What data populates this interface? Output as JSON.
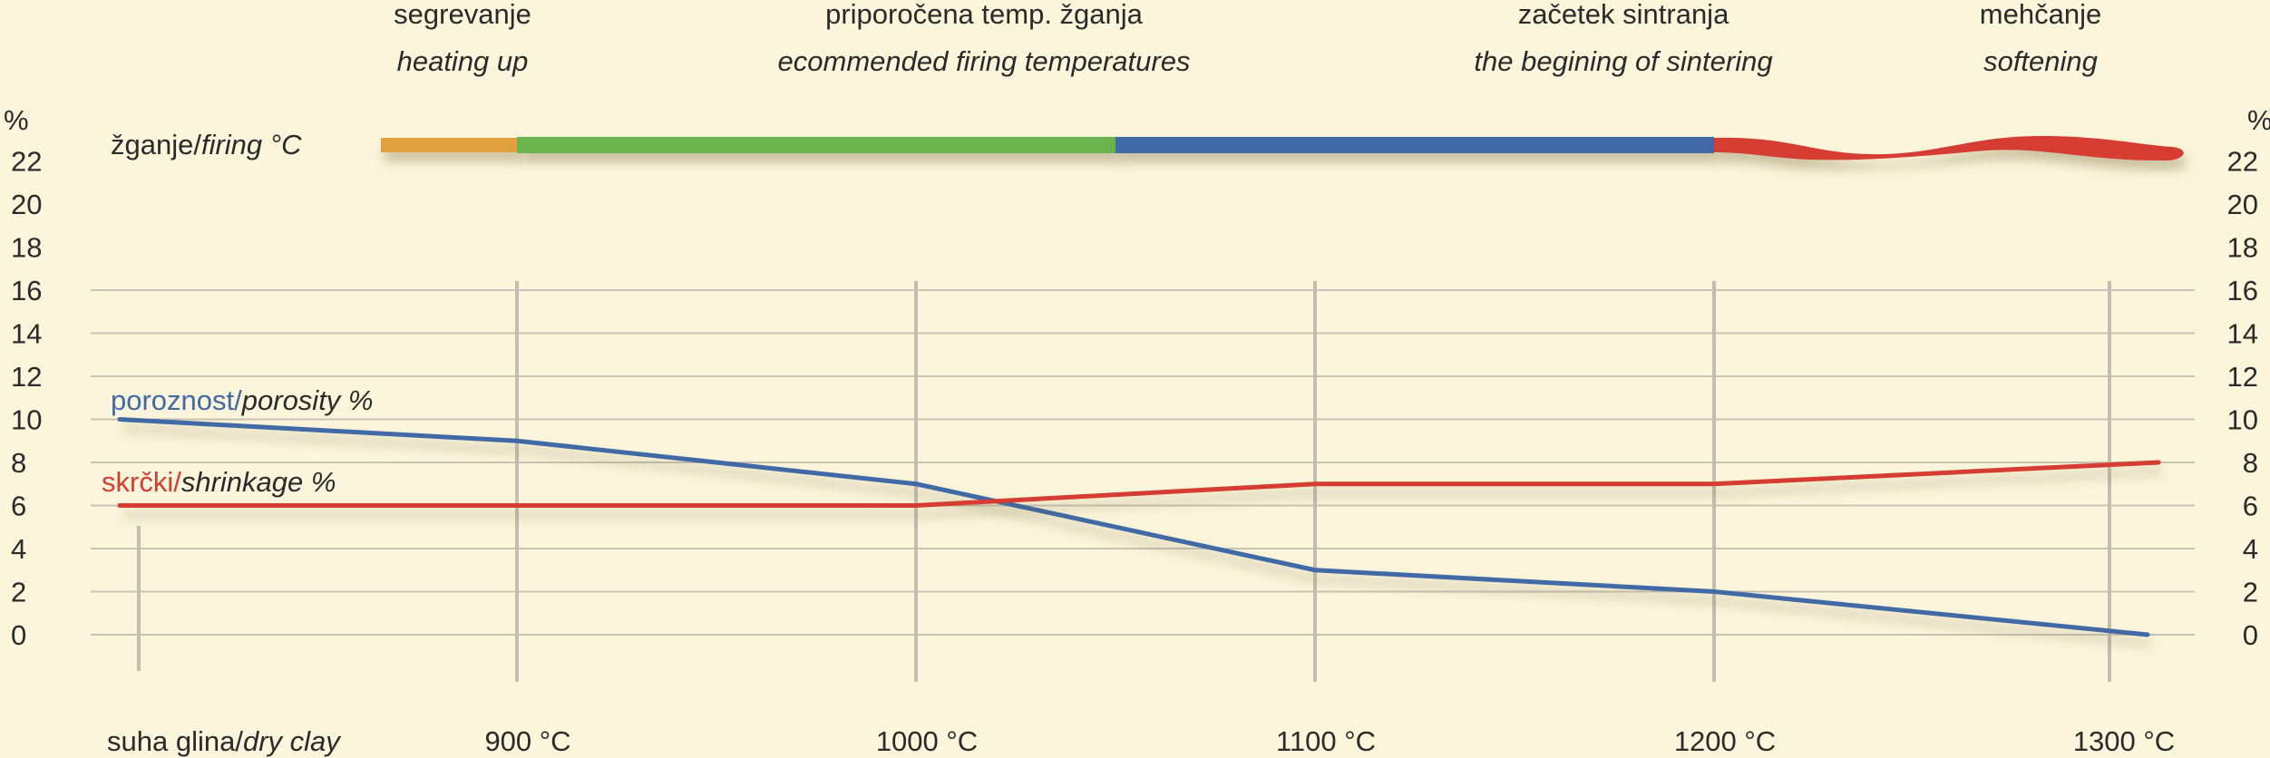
{
  "chart_data": {
    "type": "line",
    "phases": [
      {
        "label": "segrevanje",
        "label_en": "heating up",
        "color": "#e3a23f",
        "x_from": 850,
        "x_to": 900
      },
      {
        "label": "priporočena temp. žganja",
        "label_en": "ecommended firing temperatures",
        "color": "#6cb44e",
        "x_from": 900,
        "x_to": 1050
      },
      {
        "label": "začetek sintranja",
        "label_en": "the begining of sintering",
        "color": "#4169a6",
        "x_from": 1050,
        "x_to": 1200
      },
      {
        "label": "mehčanje",
        "label_en": "softening",
        "color": "#d63d31",
        "x_from": 1200,
        "x_to": 1310
      }
    ],
    "firing_label": "žganje/",
    "firing_label_en": "firing °C",
    "y_unit": "%",
    "y_ticks": [
      0,
      2,
      4,
      6,
      8,
      10,
      12,
      14,
      16,
      18,
      20,
      22
    ],
    "ylim": [
      0,
      23
    ],
    "x_ticks": [
      {
        "value": 800,
        "label": "suha glina/",
        "label_en": "dry clay"
      },
      {
        "value": 900,
        "label": "900 °C"
      },
      {
        "value": 1000,
        "label": "1000 °C"
      },
      {
        "value": 1100,
        "label": "1100 °C"
      },
      {
        "value": 1200,
        "label": "1200 °C"
      },
      {
        "value": 1300,
        "label": "1300 °C"
      }
    ],
    "series": [
      {
        "name": "poroznost/",
        "name_en": "porosity %",
        "color": "#4169a6",
        "x": [
          800,
          900,
          1000,
          1100,
          1200,
          1300
        ],
        "values": [
          10,
          9,
          7,
          3,
          2,
          0
        ]
      },
      {
        "name": "skrčki/",
        "name_en": "shrinkage %",
        "color": "#d63d31",
        "x": [
          800,
          900,
          1000,
          1100,
          1200,
          1305
        ],
        "values": [
          6,
          6,
          6,
          7,
          7,
          8
        ]
      }
    ],
    "grid": true
  }
}
